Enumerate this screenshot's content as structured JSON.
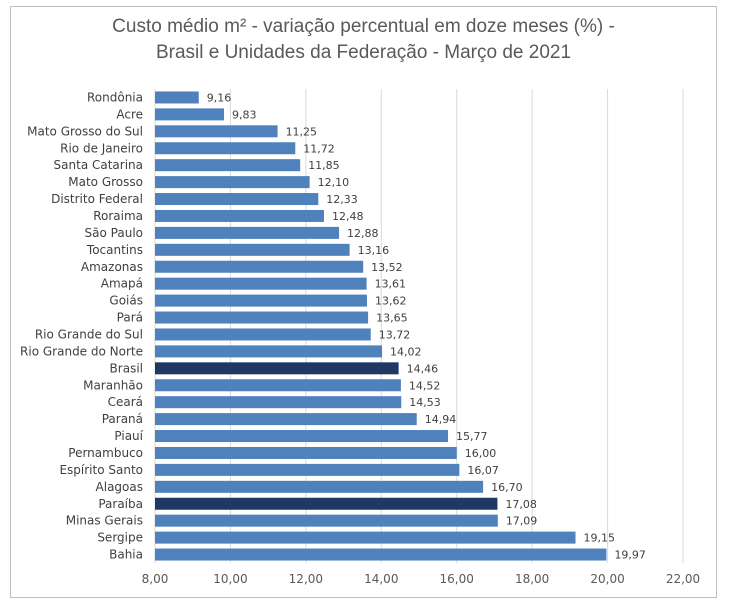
{
  "chart_data": {
    "type": "bar",
    "orientation": "horizontal",
    "title_line1": "Custo médio m² - variação percentual em doze meses (%) -",
    "title_line2": "Brasil e Unidades da Federação - Março de 2021",
    "xlim": [
      8,
      22
    ],
    "xticks": [
      "8,00",
      "10,00",
      "12,00",
      "14,00",
      "16,00",
      "18,00",
      "20,00",
      "22,00"
    ],
    "grid": true,
    "legend": "none",
    "bar_color": "#4f81bd",
    "highlight_color": "#1f3864",
    "categories": [
      {
        "name": "Rondônia",
        "value": 9.16,
        "label": "9,16",
        "highlight": false
      },
      {
        "name": "Acre",
        "value": 9.83,
        "label": "9,83",
        "highlight": false
      },
      {
        "name": "Mato Grosso do Sul",
        "value": 11.25,
        "label": "11,25",
        "highlight": false
      },
      {
        "name": "Rio de Janeiro",
        "value": 11.72,
        "label": "11,72",
        "highlight": false
      },
      {
        "name": "Santa Catarina",
        "value": 11.85,
        "label": "11,85",
        "highlight": false
      },
      {
        "name": "Mato Grosso",
        "value": 12.1,
        "label": "12,10",
        "highlight": false
      },
      {
        "name": "Distrito Federal",
        "value": 12.33,
        "label": "12,33",
        "highlight": false
      },
      {
        "name": "Roraima",
        "value": 12.48,
        "label": "12,48",
        "highlight": false
      },
      {
        "name": "São Paulo",
        "value": 12.88,
        "label": "12,88",
        "highlight": false
      },
      {
        "name": "Tocantins",
        "value": 13.16,
        "label": "13,16",
        "highlight": false
      },
      {
        "name": "Amazonas",
        "value": 13.52,
        "label": "13,52",
        "highlight": false
      },
      {
        "name": "Amapá",
        "value": 13.61,
        "label": "13,61",
        "highlight": false
      },
      {
        "name": "Goiás",
        "value": 13.62,
        "label": "13,62",
        "highlight": false
      },
      {
        "name": "Pará",
        "value": 13.65,
        "label": "13,65",
        "highlight": false
      },
      {
        "name": "Rio Grande do Sul",
        "value": 13.72,
        "label": "13,72",
        "highlight": false
      },
      {
        "name": "Rio Grande do Norte",
        "value": 14.02,
        "label": "14,02",
        "highlight": false
      },
      {
        "name": "Brasil",
        "value": 14.46,
        "label": "14,46",
        "highlight": true
      },
      {
        "name": "Maranhão",
        "value": 14.52,
        "label": "14,52",
        "highlight": false
      },
      {
        "name": "Ceará",
        "value": 14.53,
        "label": "14,53",
        "highlight": false
      },
      {
        "name": "Paraná",
        "value": 14.94,
        "label": "14,94",
        "highlight": false
      },
      {
        "name": "Piauí",
        "value": 15.77,
        "label": "15,77",
        "highlight": false
      },
      {
        "name": "Pernambuco",
        "value": 16.0,
        "label": "16,00",
        "highlight": false
      },
      {
        "name": "Espírito Santo",
        "value": 16.07,
        "label": "16,07",
        "highlight": false
      },
      {
        "name": "Alagoas",
        "value": 16.7,
        "label": "16,70",
        "highlight": false
      },
      {
        "name": "Paraíba",
        "value": 17.08,
        "label": "17,08",
        "highlight": true
      },
      {
        "name": "Minas Gerais",
        "value": 17.09,
        "label": "17,09",
        "highlight": false
      },
      {
        "name": "Sergipe",
        "value": 19.15,
        "label": "19,15",
        "highlight": false
      },
      {
        "name": "Bahia",
        "value": 19.97,
        "label": "19,97",
        "highlight": false
      }
    ]
  }
}
